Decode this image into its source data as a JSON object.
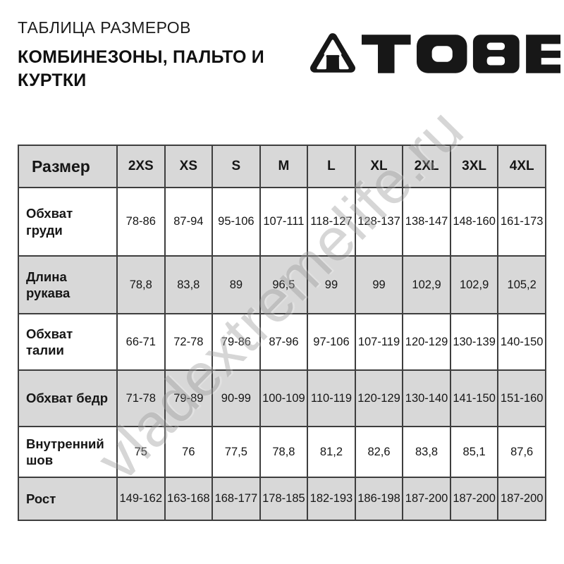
{
  "header": {
    "eyebrow": "ТАБЛИЦА РАЗМЕРОВ",
    "title": "КОМБИНЕЗОНЫ, ПАЛЬТО И КУРТКИ"
  },
  "logo": {
    "brand": "TOBE",
    "icon": "tobe-triangle-logo"
  },
  "watermark": {
    "text": "vladextremelife.ru"
  },
  "colors": {
    "row_alt": "#d8d8d8",
    "border": "#3e3e3e",
    "text": "#161616",
    "watermark_gray": "#9f9f9f",
    "logo_black": "#171717"
  },
  "chart_data": {
    "type": "table",
    "title": "ТАБЛИЦА РАЗМЕРОВ — КОМБИНЕЗОНЫ, ПАЛЬТО И КУРТКИ",
    "columns": [
      "Размер",
      "2XS",
      "XS",
      "S",
      "M",
      "L",
      "XL",
      "2XL",
      "3XL",
      "4XL"
    ],
    "rows": [
      {
        "label": "Обхват груди",
        "values": [
          "78-86",
          "87-94",
          "95-106",
          "107-111",
          "118-127",
          "128-137",
          "138-147",
          "148-160",
          "161-173"
        ]
      },
      {
        "label": "Длина рукава",
        "values": [
          "78,8",
          "83,8",
          "89",
          "96,5",
          "99",
          "99",
          "102,9",
          "102,9",
          "105,2"
        ]
      },
      {
        "label": "Обхват талии",
        "values": [
          "66-71",
          "72-78",
          "79-86",
          "87-96",
          "97-106",
          "107-119",
          "120-129",
          "130-139",
          "140-150"
        ]
      },
      {
        "label": "Обхват бедр",
        "values": [
          "71-78",
          "79-89",
          "90-99",
          "100-109",
          "110-119",
          "120-129",
          "130-140",
          "141-150",
          "151-160"
        ]
      },
      {
        "label": "Внутренний шов",
        "values": [
          "75",
          "76",
          "77,5",
          "78,8",
          "81,2",
          "82,6",
          "83,8",
          "85,1",
          "87,6"
        ]
      },
      {
        "label": "Рост",
        "values": [
          "149-162",
          "163-168",
          "168-177",
          "178-185",
          "182-193",
          "186-198",
          "187-200",
          "187-200",
          "187-200"
        ]
      }
    ]
  }
}
